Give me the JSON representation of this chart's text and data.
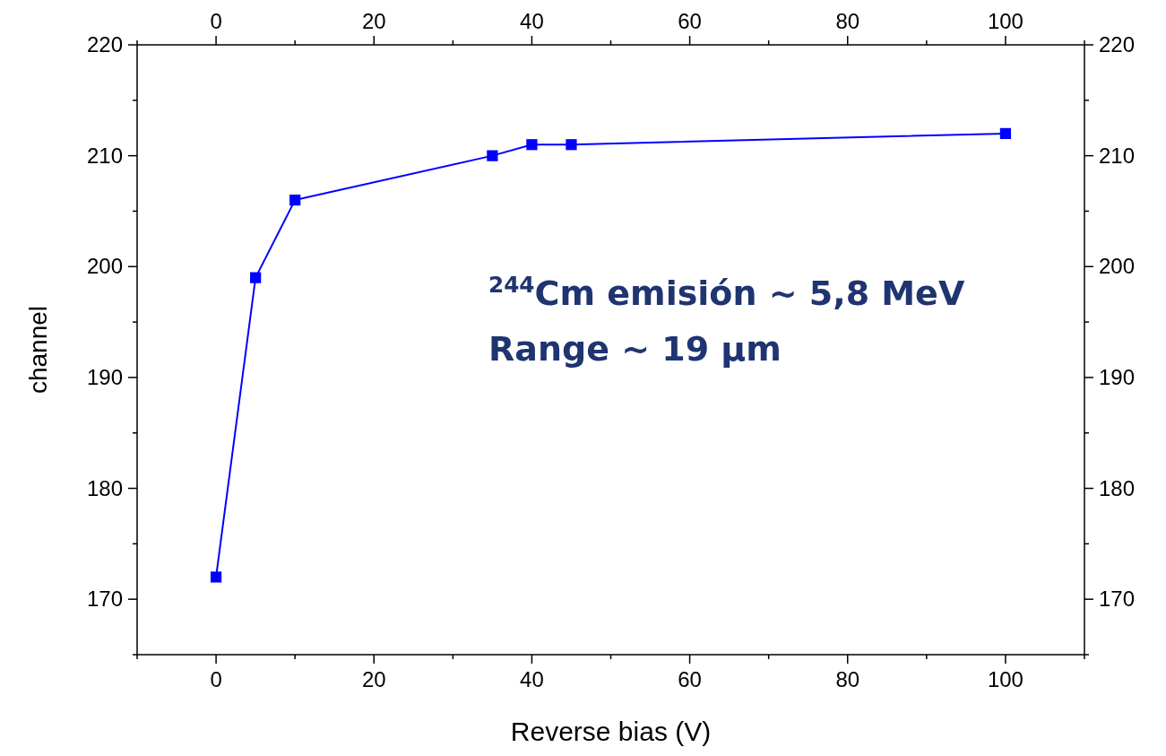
{
  "chart_data": {
    "type": "line",
    "xlabel": "Reverse bias (V)",
    "ylabel": "channel",
    "x": [
      0,
      5,
      10,
      35,
      40,
      45,
      100
    ],
    "series": [
      {
        "color": "#0000ff",
        "values": [
          172,
          199,
          206,
          210,
          211,
          211,
          212
        ]
      }
    ],
    "xlim": [
      -10,
      110
    ],
    "xticks": [
      {
        "value": -10,
        "label": null
      },
      0,
      {
        "value": 10,
        "label": null
      },
      20,
      {
        "value": 30,
        "label": null
      },
      40,
      {
        "value": 50,
        "label": null
      },
      60,
      {
        "value": 70,
        "label": null
      },
      80,
      {
        "value": 90,
        "label": null
      },
      100,
      {
        "value": 110,
        "label": null
      }
    ],
    "x2lim": [
      -10,
      110
    ],
    "x2ticks": [
      {
        "value": -10,
        "label": null
      },
      0,
      {
        "value": 10,
        "label": null
      },
      20,
      {
        "value": 30,
        "label": null
      },
      40,
      {
        "value": 50,
        "label": null
      },
      60,
      {
        "value": 70,
        "label": null
      },
      80,
      {
        "value": 90,
        "label": null
      },
      100,
      {
        "value": 110,
        "label": null
      }
    ],
    "ylim": [
      165,
      220
    ],
    "yticks": [
      {
        "value": 165,
        "label": null
      },
      170,
      {
        "value": 175,
        "label": null
      },
      180,
      {
        "value": 185,
        "label": null
      },
      190,
      {
        "value": 195,
        "label": null
      },
      200,
      {
        "value": 205,
        "label": null
      },
      210,
      {
        "value": 215,
        "label": null
      },
      220
    ],
    "y2lim": [
      165,
      220
    ],
    "y2ticks": [
      {
        "value": 165,
        "label": null
      },
      170,
      {
        "value": 175,
        "label": null
      },
      180,
      {
        "value": 185,
        "label": null
      },
      190,
      {
        "value": 195,
        "label": null
      },
      200,
      {
        "value": 205,
        "label": null
      },
      210,
      {
        "value": 215,
        "label": null
      },
      220
    ],
    "annotations": [
      "$^{244}$Cm emisión ~ 5,8 MeV",
      "Range ~ 19 μm"
    ],
    "marker": "square",
    "line_style": "solid",
    "grid": false
  }
}
